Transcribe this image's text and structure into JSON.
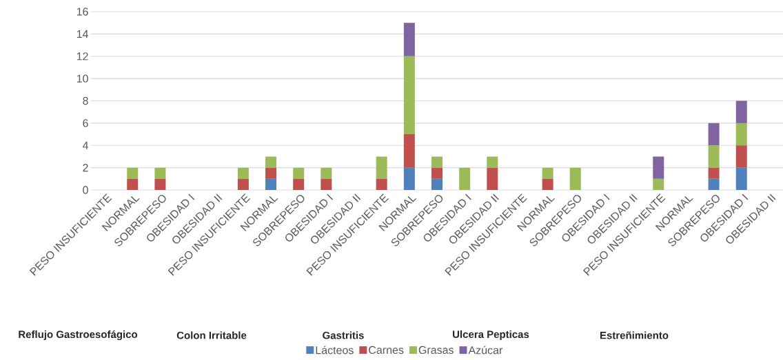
{
  "chart_data": {
    "type": "bar",
    "stacked": true,
    "categories": [
      "PESO INSUFICIENTE",
      "NORMAL",
      "SOBREPESO",
      "OBESIDAD I",
      "OBESIDAD II",
      "PESO INSUFICIENTE",
      "NORMAL",
      "SOBREPESO",
      "OBESIDAD I",
      "OBESIDAD II",
      "PESO INSUFICIENTE",
      "NORMAL",
      "SOBREPESO",
      "OBESIDAD I",
      "OBESIDAD II",
      "PESO INSUFICIENTE",
      "NORMAL",
      "SOBREPESO",
      "OBESIDAD I",
      "OBESIDAD II",
      "PESO INSUFICIENTE",
      "NORMAL",
      "SOBREPESO",
      "OBESIDAD I",
      "OBESIDAD II"
    ],
    "series": [
      {
        "name": "Lácteos",
        "color": "#4f81bd",
        "values": [
          0,
          0,
          0,
          0,
          0,
          0,
          1,
          0,
          0,
          0,
          0,
          2,
          1,
          0,
          0,
          0,
          0,
          0,
          0,
          0,
          0,
          0,
          1,
          2,
          0
        ]
      },
      {
        "name": "Carnes",
        "color": "#c0504d",
        "values": [
          0,
          1,
          1,
          0,
          0,
          1,
          1,
          1,
          1,
          0,
          1,
          3,
          1,
          0,
          2,
          0,
          1,
          0,
          0,
          0,
          0,
          0,
          1,
          2,
          0
        ]
      },
      {
        "name": "Grasas",
        "color": "#9bbb59",
        "values": [
          0,
          1,
          1,
          0,
          0,
          1,
          1,
          1,
          1,
          0,
          2,
          7,
          1,
          2,
          1,
          0,
          1,
          2,
          0,
          0,
          1,
          0,
          2,
          2,
          0
        ]
      },
      {
        "name": "Azúcar",
        "color": "#8064a2",
        "values": [
          0,
          0,
          0,
          0,
          0,
          0,
          0,
          0,
          0,
          0,
          0,
          3,
          0,
          0,
          0,
          0,
          0,
          0,
          0,
          0,
          2,
          0,
          2,
          2,
          0
        ]
      }
    ],
    "ylim": [
      0,
      16
    ],
    "yticks": [
      0,
      2,
      4,
      6,
      8,
      10,
      12,
      14,
      16
    ],
    "grid": "y",
    "legend": "bottom",
    "annotations": [
      "Reflujo Gastroesofágico",
      "Colon Irritable",
      "Gastritis",
      "Ulcera Pepticas",
      "Estreñimiento"
    ]
  }
}
